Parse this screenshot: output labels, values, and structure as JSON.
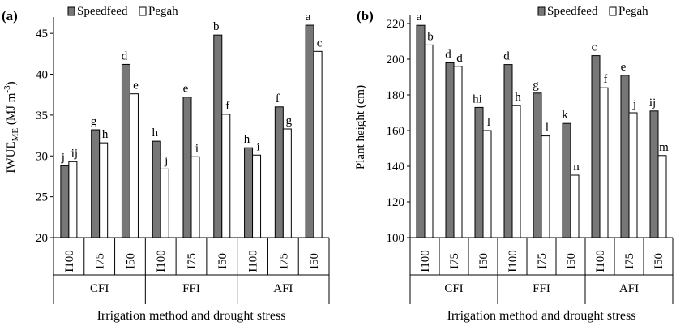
{
  "chart_data": [
    {
      "type": "bar",
      "panel_label": "(a)",
      "ylabel": {
        "main": "IWUE",
        "sub": "ME",
        "unit_prefix": " (MJ m",
        "unit_sup": "-3",
        "unit_suffix": ")"
      },
      "xlabel": "Irrigation method and drought stress",
      "ylim": [
        20,
        47
      ],
      "yticks": [
        "20",
        "25",
        "30",
        "35",
        "40",
        "45"
      ],
      "groups": [
        "CFI",
        "FFI",
        "AFI"
      ],
      "categories": [
        "I100",
        "I75",
        "I50",
        "I100",
        "I75",
        "I50",
        "I100",
        "I75",
        "I50"
      ],
      "legend": {
        "placement": "top-left"
      },
      "series": [
        {
          "name": "Speedfeed",
          "color": "#777777",
          "values": [
            28.8,
            33.2,
            41.2,
            31.8,
            37.2,
            44.8,
            31.0,
            36.0,
            46.0
          ],
          "labels": [
            "j",
            "g",
            "d",
            "h",
            "e",
            "b",
            "h",
            "f",
            "a"
          ]
        },
        {
          "name": "Pegah",
          "color": "#ffffff",
          "values": [
            29.3,
            31.6,
            37.6,
            28.4,
            29.9,
            35.1,
            30.1,
            33.3,
            42.8
          ],
          "labels": [
            "ij",
            "h",
            "e",
            "j",
            "i",
            "f",
            "i",
            "g",
            "c"
          ]
        }
      ]
    },
    {
      "type": "bar",
      "panel_label": "(b)",
      "ylabel": {
        "main": "Plant height (cm)"
      },
      "xlabel": "Irrigation method and drought stress",
      "ylim": [
        100,
        225
      ],
      "yticks": [
        "100",
        "120",
        "140",
        "160",
        "180",
        "200",
        "220"
      ],
      "groups": [
        "CFI",
        "FFI",
        "AFI"
      ],
      "categories": [
        "I100",
        "I75",
        "I50",
        "I100",
        "I75",
        "I50",
        "I100",
        "I75",
        "I50"
      ],
      "legend": {
        "placement": "top-right"
      },
      "series": [
        {
          "name": "Speedfeed",
          "color": "#777777",
          "values": [
            219,
            198,
            173,
            197,
            181,
            164,
            202,
            191,
            171
          ],
          "labels": [
            "a",
            "d",
            "hi",
            "d",
            "g",
            "k",
            "c",
            "e",
            "ij"
          ]
        },
        {
          "name": "Pegah",
          "color": "#ffffff",
          "values": [
            208,
            196,
            160,
            174,
            157,
            135,
            184,
            170,
            146
          ],
          "labels": [
            "b",
            "d",
            "l",
            "h",
            "l",
            "n",
            "f",
            "j",
            "m"
          ]
        }
      ]
    }
  ]
}
